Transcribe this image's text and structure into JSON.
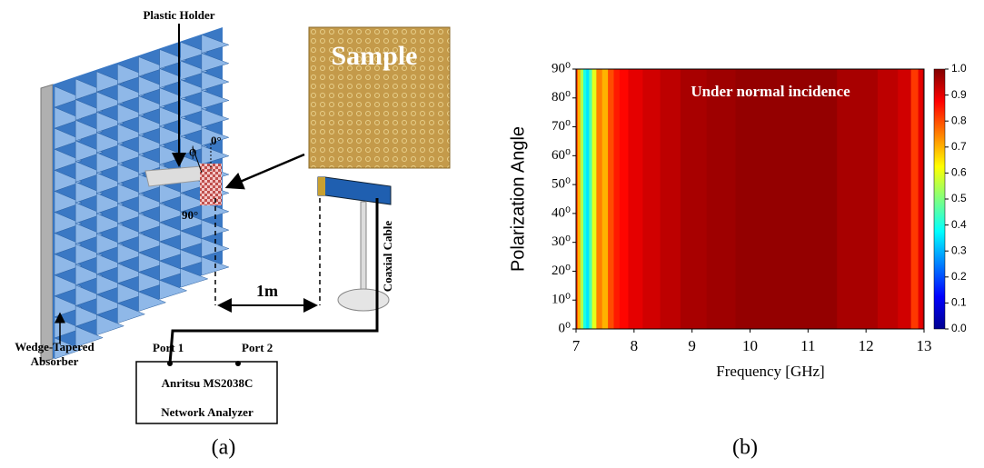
{
  "figure": {
    "panel_a": {
      "label": "(a)",
      "plastic_holder": "Plastic Holder",
      "sample": "Sample",
      "phi": "ϕ",
      "angle_0": "0°",
      "angle_90": "90°",
      "distance": "1m",
      "cable": "Coaxial Cable",
      "absorber": [
        "Wedge-Tapered",
        "Absorber"
      ],
      "port_1": "Port 1",
      "port_2": "Port 2",
      "analyzer": [
        "Anritsu MS2038C",
        "Network Analyzer"
      ]
    },
    "panel_b_label": "(b)"
  },
  "chart_data": {
    "type": "heatmap",
    "title": "Under normal incidence",
    "x_label": "Frequency [GHz]",
    "y_label": "Polarization Angle",
    "colormap": "jet",
    "x": [
      7.0,
      7.05,
      7.1,
      7.15,
      7.2,
      7.25,
      7.3,
      7.4,
      7.5,
      7.6,
      7.7,
      7.8,
      8.0,
      8.3,
      8.6,
      9.0,
      9.5,
      10.0,
      11.0,
      12.0,
      12.4,
      12.7,
      12.85,
      12.95,
      13.0
    ],
    "values": [
      0.85,
      0.7,
      0.55,
      0.4,
      0.35,
      0.45,
      0.6,
      0.75,
      0.7,
      0.8,
      0.85,
      0.87,
      0.9,
      0.92,
      0.94,
      0.96,
      0.97,
      0.98,
      0.98,
      0.96,
      0.94,
      0.92,
      0.82,
      0.9,
      0.94
    ],
    "xlim": [
      7,
      13
    ],
    "xticks": [
      7,
      8,
      9,
      10,
      11,
      12,
      13
    ],
    "ylim": [
      0,
      90
    ],
    "yticks": [
      {
        "value": 0,
        "label": "0⁰"
      },
      {
        "value": 10,
        "label": "10⁰"
      },
      {
        "value": 20,
        "label": "20⁰"
      },
      {
        "value": 30,
        "label": "30⁰"
      },
      {
        "value": 40,
        "label": "40⁰"
      },
      {
        "value": 50,
        "label": "50⁰"
      },
      {
        "value": 60,
        "label": "60⁰"
      },
      {
        "value": 70,
        "label": "70⁰"
      },
      {
        "value": 80,
        "label": "80⁰"
      },
      {
        "value": 90,
        "label": "90⁰"
      }
    ],
    "clim": [
      0,
      1
    ],
    "cticks": [
      {
        "value": 0,
        "label": "0.0"
      },
      {
        "value": 0.1,
        "label": "0.1"
      },
      {
        "value": 0.2,
        "label": "0.2"
      },
      {
        "value": 0.3,
        "label": "0.3"
      },
      {
        "value": 0.4,
        "label": "0.4"
      },
      {
        "value": 0.5,
        "label": "0.5"
      },
      {
        "value": 0.6,
        "label": "0.6"
      },
      {
        "value": 0.7,
        "label": "0.7"
      },
      {
        "value": 0.8,
        "label": "0.8"
      },
      {
        "value": 0.9,
        "label": "0.9"
      },
      {
        "value": 1.0,
        "label": "1.0"
      }
    ]
  }
}
